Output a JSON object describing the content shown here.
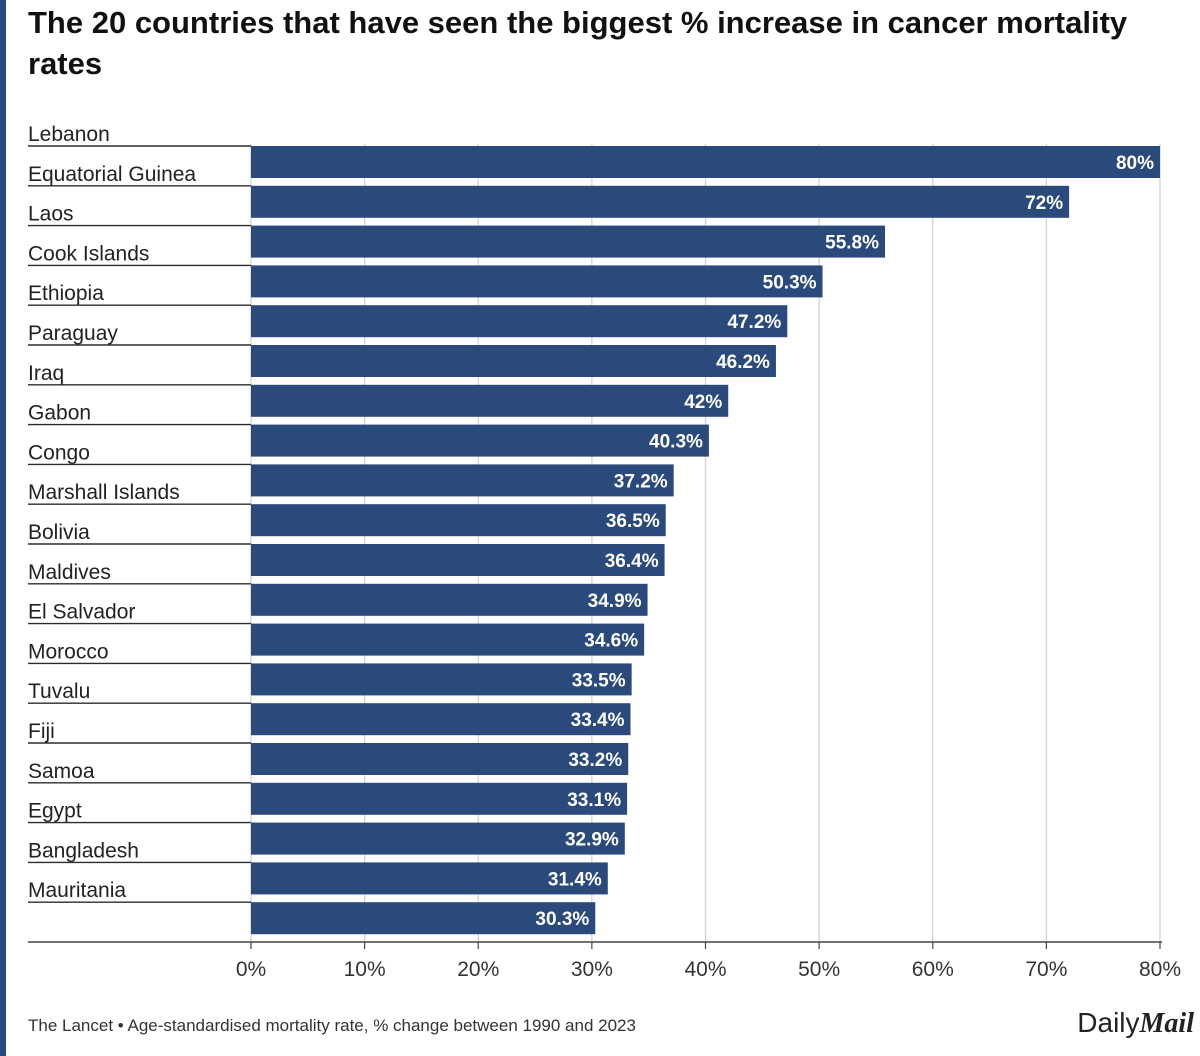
{
  "chart_data": {
    "type": "bar",
    "orientation": "horizontal",
    "title": "The 20 countries that have seen the biggest % increase in cancer mortality rates",
    "categories": [
      "Lebanon",
      "Equatorial Guinea",
      "Laos",
      "Cook Islands",
      "Ethiopia",
      "Paraguay",
      "Iraq",
      "Gabon",
      "Congo",
      "Marshall Islands",
      "Bolivia",
      "Maldives",
      "El Salvador",
      "Morocco",
      "Tuvalu",
      "Fiji",
      "Samoa",
      "Egypt",
      "Bangladesh",
      "Mauritania"
    ],
    "values": [
      80,
      72,
      55.8,
      50.3,
      47.2,
      46.2,
      42,
      40.3,
      37.2,
      36.5,
      36.4,
      34.9,
      34.6,
      33.5,
      33.4,
      33.2,
      33.1,
      32.9,
      31.4,
      30.3
    ],
    "value_labels": [
      "80%",
      "72%",
      "55.8%",
      "50.3%",
      "47.2%",
      "46.2%",
      "42%",
      "40.3%",
      "37.2%",
      "36.5%",
      "36.4%",
      "34.9%",
      "34.6%",
      "33.5%",
      "33.4%",
      "33.2%",
      "33.1%",
      "32.9%",
      "31.4%",
      "30.3%"
    ],
    "xlim": [
      0,
      80
    ],
    "xticks": [
      "0%",
      "10%",
      "20%",
      "30%",
      "40%",
      "50%",
      "60%",
      "70%",
      "80%"
    ],
    "xlabel": "",
    "ylabel": "",
    "grid": true,
    "legend": "none",
    "colors": {
      "bar": "#2b4a7c",
      "grid": "#d0d0d0",
      "label": "#ffffff"
    }
  },
  "footer": {
    "source": "The Lancet • Age-standardised mortality rate, % change between 1990 and 2023",
    "brand_light": "Daily",
    "brand_bold": "Mail"
  }
}
